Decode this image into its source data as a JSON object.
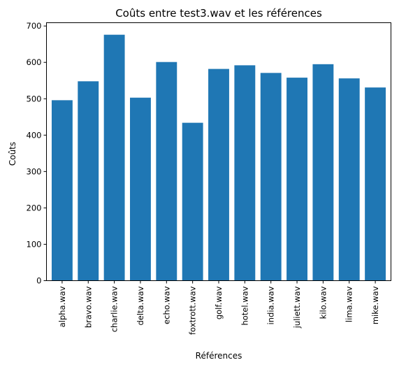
{
  "chart_data": {
    "type": "bar",
    "title": "Coûts entre test3.wav et les références",
    "xlabel": "Références",
    "ylabel": "Coûts",
    "categories": [
      "alpha.wav",
      "bravo.wav",
      "charlie.wav",
      "delta.wav",
      "echo.wav",
      "foxtrott.wav",
      "golf.wav",
      "hotel.wav",
      "india.wav",
      "juliett.wav",
      "kilo.wav",
      "lima.wav",
      "mike.wav"
    ],
    "values": [
      496,
      548,
      676,
      503,
      601,
      434,
      582,
      592,
      571,
      558,
      595,
      556,
      531
    ],
    "ylim": [
      0,
      709
    ],
    "yticks": [
      0,
      100,
      200,
      300,
      400,
      500,
      600,
      700
    ],
    "grid": false,
    "bar_color": "#1f77b4"
  }
}
